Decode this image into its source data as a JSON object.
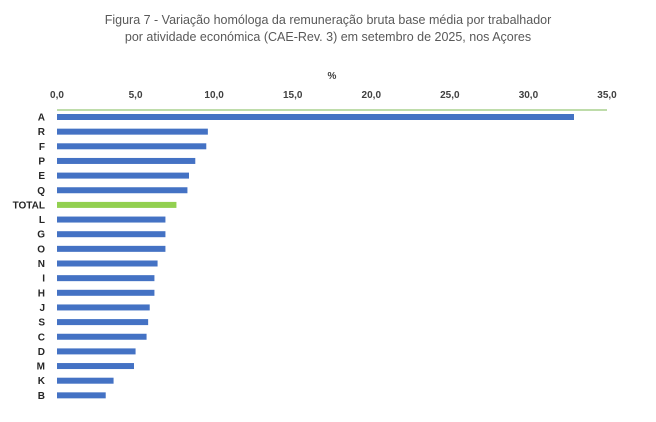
{
  "chart_data": {
    "type": "bar",
    "orientation": "horizontal",
    "title_line1": "Figura 7 - Variação homóloga da remuneração bruta base média por trabalhador",
    "title_line2": "por atividade económica (CAE-Rev. 3) em setembro de 2025, nos Açores",
    "unit_label": "%",
    "axis_position": "top",
    "xlim": [
      0,
      35
    ],
    "ticks": [
      0,
      5,
      10,
      15,
      20,
      25,
      30,
      35
    ],
    "tick_labels": [
      "0,0",
      "5,0",
      "10,0",
      "15,0",
      "20,0",
      "25,0",
      "30,0",
      "35,0"
    ],
    "categories": [
      "A",
      "R",
      "F",
      "P",
      "E",
      "Q",
      "TOTAL",
      "L",
      "G",
      "O",
      "N",
      "I",
      "H",
      "J",
      "S",
      "C",
      "D",
      "M",
      "K",
      "B"
    ],
    "values": [
      32.9,
      9.6,
      9.5,
      8.8,
      8.4,
      8.3,
      7.6,
      6.9,
      6.9,
      6.9,
      6.4,
      6.2,
      6.2,
      5.9,
      5.8,
      5.7,
      5.0,
      4.9,
      3.6,
      3.1
    ],
    "highlight": "TOTAL",
    "colors": {
      "bar": "#4472C4",
      "highlight": "#92D050",
      "axis_line": "#A9D18E",
      "title": "#595959"
    }
  }
}
